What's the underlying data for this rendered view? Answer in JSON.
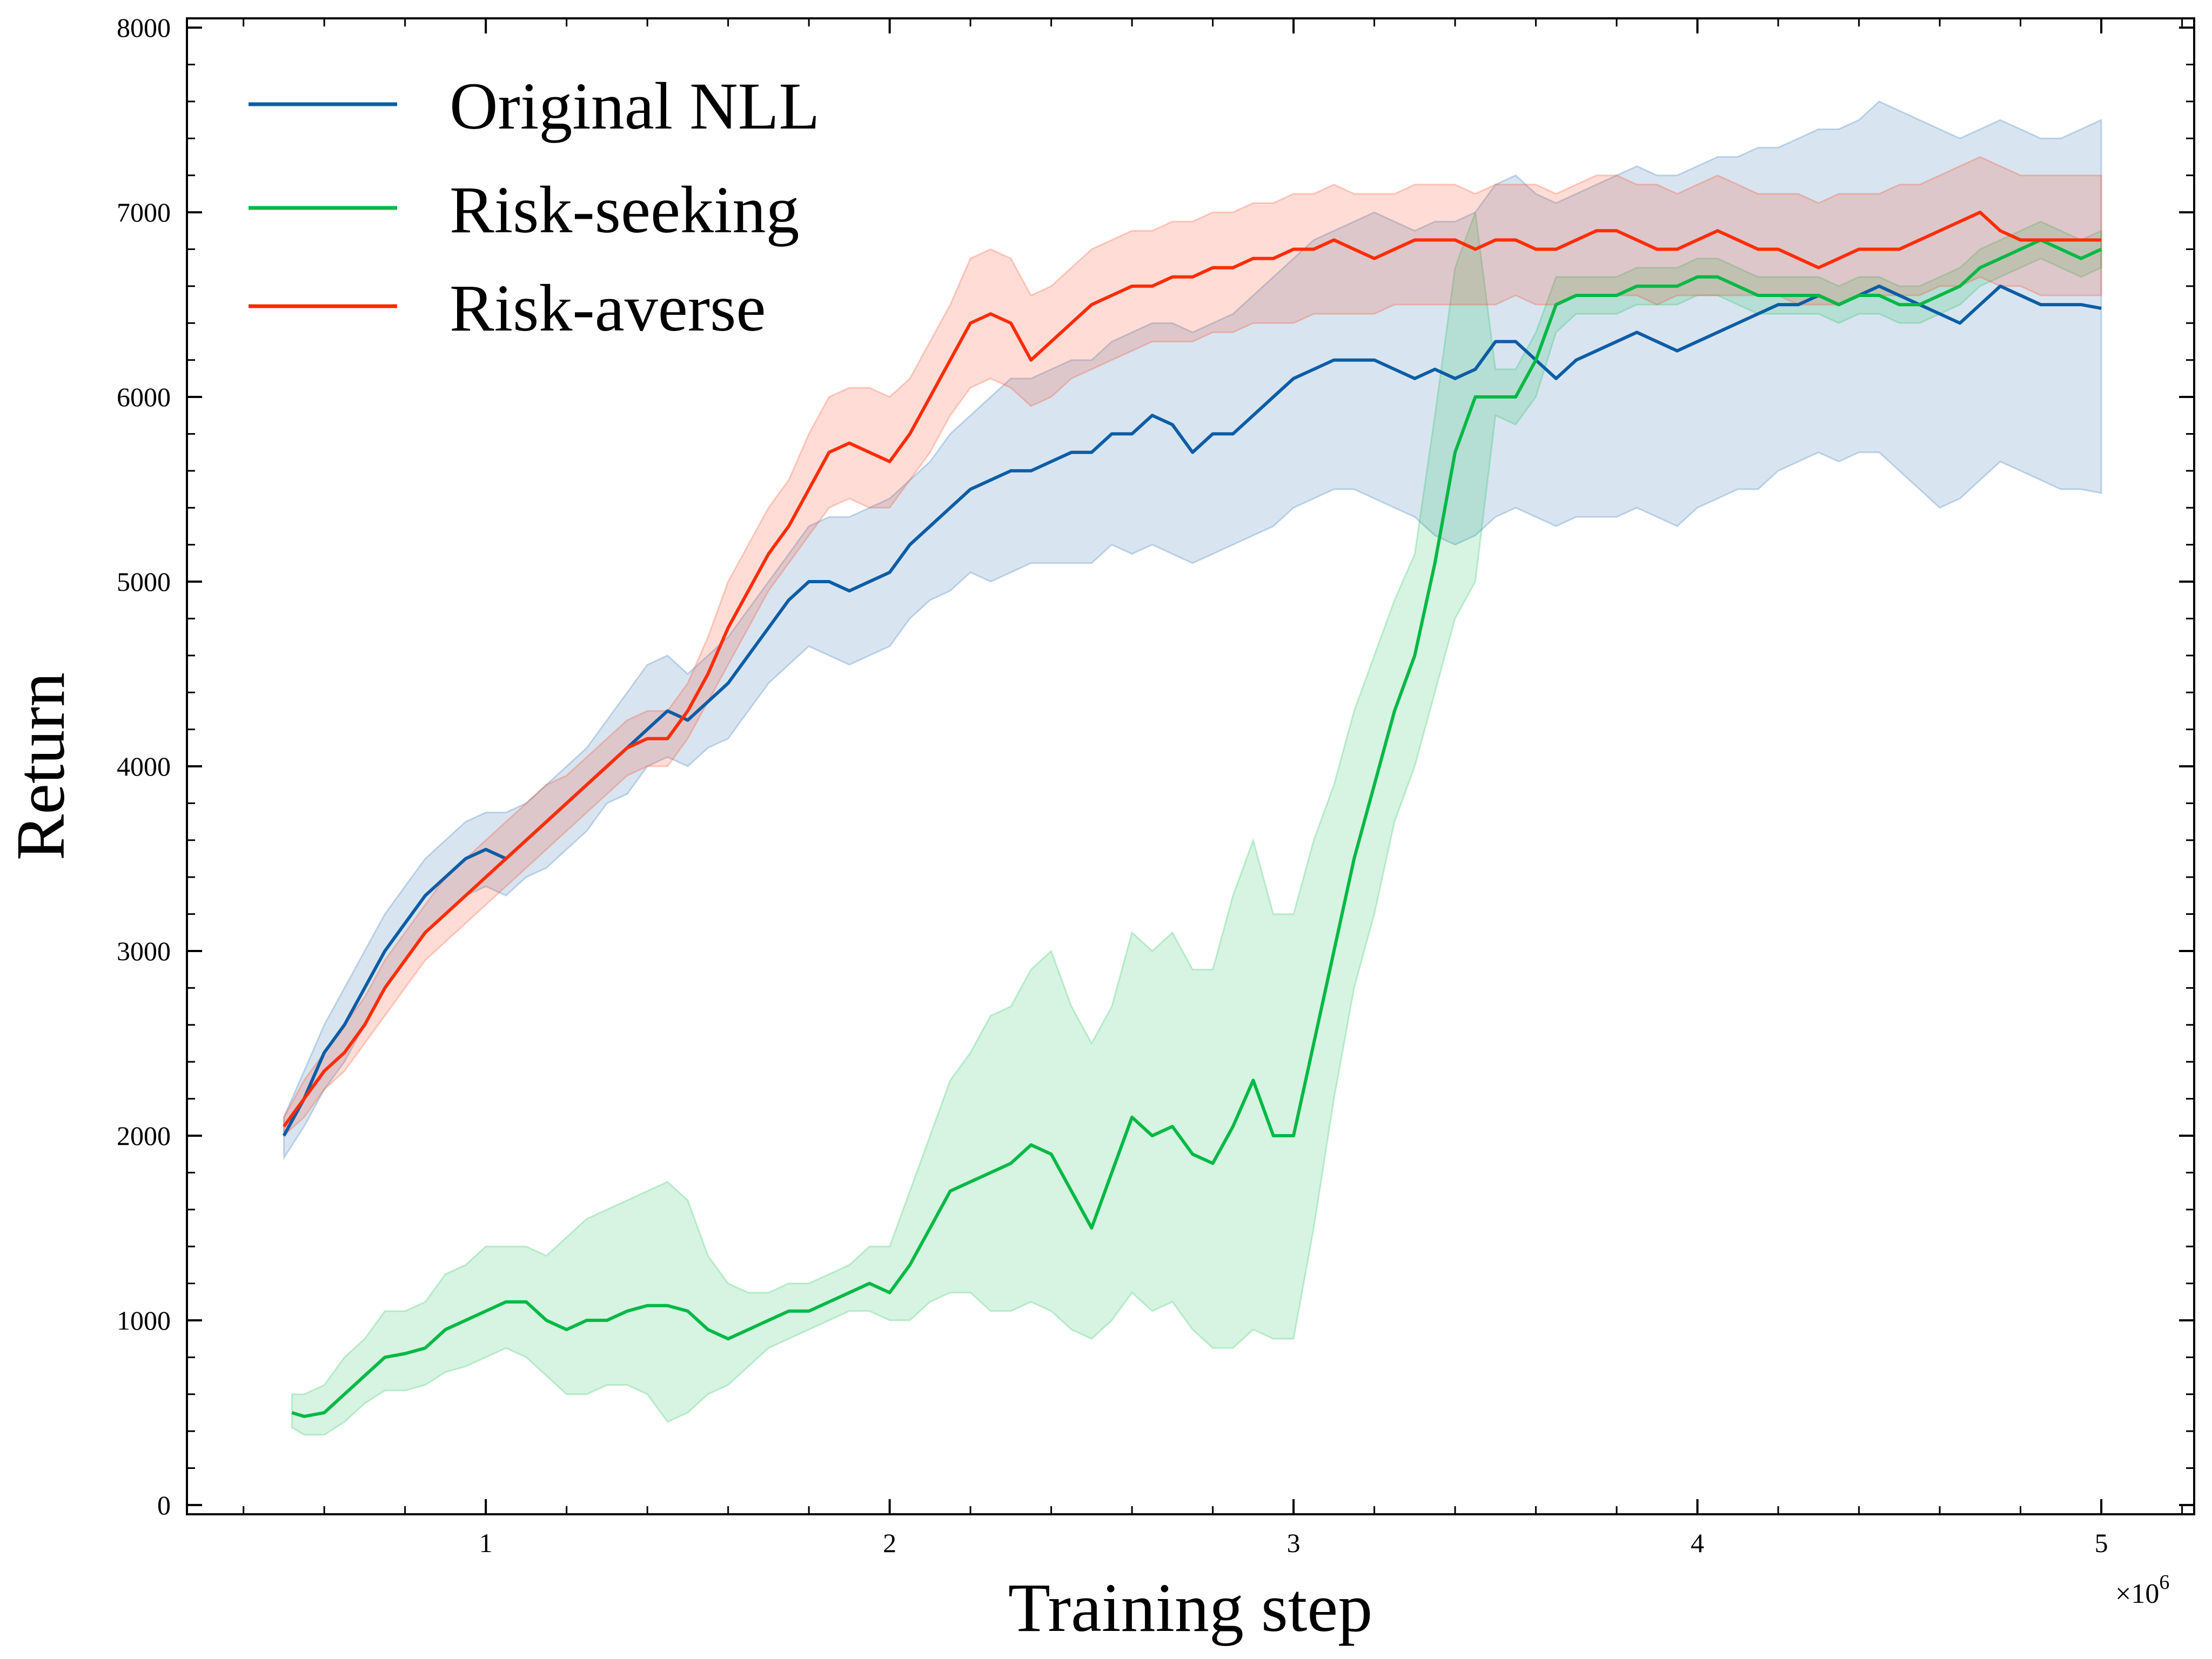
{
  "chart_data": {
    "type": "line",
    "title": "",
    "xlabel": "Training step",
    "ylabel": "Return",
    "x_offset_label": "×10",
    "x_offset_exponent": "6",
    "xlim": [
      0.26,
      5.23
    ],
    "ylim": [
      -50,
      8050
    ],
    "xticks": [
      1,
      2,
      3,
      4,
      5
    ],
    "xtick_labels": [
      "1",
      "2",
      "3",
      "4",
      "5"
    ],
    "yticks": [
      0,
      1000,
      2000,
      3000,
      4000,
      5000,
      6000,
      7000,
      8000
    ],
    "ytick_labels": [
      "0",
      "1000",
      "2000",
      "3000",
      "4000",
      "5000",
      "6000",
      "7000",
      "8000"
    ],
    "grid": false,
    "legend_position": "top-left",
    "series": [
      {
        "name": "Original NLL",
        "color": "#0C5DA5",
        "x": [
          0.5,
          0.55,
          0.6,
          0.65,
          0.7,
          0.75,
          0.8,
          0.85,
          0.9,
          0.95,
          1.0,
          1.05,
          1.1,
          1.15,
          1.2,
          1.25,
          1.3,
          1.35,
          1.4,
          1.45,
          1.5,
          1.55,
          1.6,
          1.65,
          1.7,
          1.75,
          1.8,
          1.85,
          1.9,
          1.95,
          2.0,
          2.05,
          2.1,
          2.15,
          2.2,
          2.25,
          2.3,
          2.35,
          2.4,
          2.45,
          2.5,
          2.55,
          2.6,
          2.65,
          2.7,
          2.75,
          2.8,
          2.85,
          2.9,
          2.95,
          3.0,
          3.05,
          3.1,
          3.15,
          3.2,
          3.25,
          3.3,
          3.35,
          3.4,
          3.45,
          3.5,
          3.55,
          3.6,
          3.65,
          3.7,
          3.75,
          3.8,
          3.85,
          3.9,
          3.95,
          4.0,
          4.05,
          4.1,
          4.15,
          4.2,
          4.25,
          4.3,
          4.35,
          4.4,
          4.45,
          4.5,
          4.55,
          4.6,
          4.65,
          4.7,
          4.75,
          4.8,
          4.85,
          4.9,
          4.95,
          5.0
        ],
        "y": [
          2000,
          2200,
          2450,
          2600,
          2800,
          3000,
          3150,
          3300,
          3400,
          3500,
          3550,
          3500,
          3600,
          3700,
          3800,
          3900,
          4000,
          4100,
          4200,
          4300,
          4250,
          4350,
          4450,
          4600,
          4750,
          4900,
          5000,
          5000,
          4950,
          5000,
          5050,
          5200,
          5300,
          5400,
          5500,
          5550,
          5600,
          5600,
          5650,
          5700,
          5700,
          5800,
          5800,
          5900,
          5850,
          5700,
          5800,
          5800,
          5900,
          6000,
          6100,
          6150,
          6200,
          6200,
          6200,
          6150,
          6100,
          6150,
          6100,
          6150,
          6300,
          6300,
          6200,
          6100,
          6200,
          6250,
          6300,
          6350,
          6300,
          6250,
          6300,
          6350,
          6400,
          6450,
          6500,
          6500,
          6550,
          6500,
          6550,
          6600,
          6550,
          6500,
          6450,
          6400,
          6500,
          6600,
          6550,
          6500,
          6500,
          6500,
          6480
        ],
        "lower": [
          1880,
          2050,
          2250,
          2400,
          2600,
          2800,
          2950,
          3100,
          3200,
          3300,
          3350,
          3300,
          3400,
          3450,
          3550,
          3650,
          3800,
          3850,
          4000,
          4050,
          4000,
          4100,
          4150,
          4300,
          4450,
          4550,
          4650,
          4600,
          4550,
          4600,
          4650,
          4800,
          4900,
          4950,
          5050,
          5000,
          5050,
          5100,
          5100,
          5100,
          5100,
          5200,
          5150,
          5200,
          5150,
          5100,
          5150,
          5200,
          5250,
          5300,
          5400,
          5450,
          5500,
          5500,
          5450,
          5400,
          5350,
          5250,
          5200,
          5250,
          5350,
          5400,
          5350,
          5300,
          5350,
          5350,
          5350,
          5400,
          5350,
          5300,
          5400,
          5450,
          5500,
          5500,
          5600,
          5650,
          5700,
          5650,
          5700,
          5700,
          5600,
          5500,
          5400,
          5450,
          5550,
          5650,
          5600,
          5550,
          5500,
          5500,
          5480
        ],
        "upper": [
          2100,
          2350,
          2600,
          2800,
          3000,
          3200,
          3350,
          3500,
          3600,
          3700,
          3750,
          3750,
          3800,
          3900,
          4000,
          4100,
          4250,
          4400,
          4550,
          4600,
          4500,
          4600,
          4700,
          4850,
          5000,
          5150,
          5300,
          5350,
          5350,
          5400,
          5450,
          5550,
          5650,
          5800,
          5900,
          6000,
          6100,
          6100,
          6150,
          6200,
          6200,
          6300,
          6350,
          6400,
          6400,
          6350,
          6400,
          6450,
          6550,
          6650,
          6750,
          6850,
          6900,
          6950,
          7000,
          6950,
          6900,
          6950,
          6950,
          7000,
          7150,
          7200,
          7100,
          7050,
          7100,
          7150,
          7200,
          7250,
          7200,
          7200,
          7250,
          7300,
          7300,
          7350,
          7350,
          7400,
          7450,
          7450,
          7500,
          7600,
          7550,
          7500,
          7450,
          7400,
          7450,
          7500,
          7450,
          7400,
          7400,
          7450,
          7500
        ]
      },
      {
        "name": "Risk-seeking",
        "color": "#00B945",
        "x": [
          0.52,
          0.55,
          0.6,
          0.65,
          0.7,
          0.75,
          0.8,
          0.85,
          0.9,
          0.95,
          1.0,
          1.05,
          1.1,
          1.15,
          1.2,
          1.25,
          1.3,
          1.35,
          1.4,
          1.45,
          1.5,
          1.55,
          1.6,
          1.65,
          1.7,
          1.75,
          1.8,
          1.85,
          1.9,
          1.95,
          2.0,
          2.05,
          2.1,
          2.15,
          2.2,
          2.25,
          2.3,
          2.35,
          2.4,
          2.45,
          2.5,
          2.55,
          2.6,
          2.65,
          2.7,
          2.75,
          2.8,
          2.85,
          2.9,
          2.95,
          3.0,
          3.05,
          3.1,
          3.15,
          3.2,
          3.25,
          3.3,
          3.35,
          3.4,
          3.45,
          3.5,
          3.55,
          3.6,
          3.65,
          3.7,
          3.75,
          3.8,
          3.85,
          3.9,
          3.95,
          4.0,
          4.05,
          4.1,
          4.15,
          4.2,
          4.25,
          4.3,
          4.35,
          4.4,
          4.45,
          4.5,
          4.55,
          4.6,
          4.65,
          4.7,
          4.75,
          4.8,
          4.85,
          4.9,
          4.95,
          5.0
        ],
        "y": [
          500,
          480,
          500,
          600,
          700,
          800,
          820,
          850,
          950,
          1000,
          1050,
          1100,
          1100,
          1000,
          950,
          1000,
          1000,
          1050,
          1080,
          1080,
          1050,
          950,
          900,
          950,
          1000,
          1050,
          1050,
          1100,
          1150,
          1200,
          1150,
          1300,
          1500,
          1700,
          1750,
          1800,
          1850,
          1950,
          1900,
          1700,
          1500,
          1800,
          2100,
          2000,
          2050,
          1900,
          1850,
          2050,
          2300,
          2000,
          2000,
          2500,
          3000,
          3500,
          3900,
          4300,
          4600,
          5100,
          5700,
          6000,
          6000,
          6000,
          6200,
          6500,
          6550,
          6550,
          6550,
          6600,
          6600,
          6600,
          6650,
          6650,
          6600,
          6550,
          6550,
          6550,
          6550,
          6500,
          6550,
          6550,
          6500,
          6500,
          6550,
          6600,
          6700,
          6750,
          6800,
          6850,
          6800,
          6750,
          6800
        ],
        "lower": [
          420,
          380,
          380,
          450,
          550,
          620,
          620,
          650,
          720,
          750,
          800,
          850,
          800,
          700,
          600,
          600,
          650,
          650,
          600,
          450,
          500,
          600,
          650,
          750,
          850,
          900,
          950,
          1000,
          1050,
          1050,
          1000,
          1000,
          1100,
          1150,
          1150,
          1050,
          1050,
          1100,
          1050,
          950,
          900,
          1000,
          1150,
          1050,
          1100,
          950,
          850,
          850,
          950,
          900,
          900,
          1500,
          2200,
          2800,
          3200,
          3700,
          4000,
          4400,
          4800,
          5000,
          5900,
          5850,
          6000,
          6350,
          6450,
          6450,
          6450,
          6500,
          6500,
          6500,
          6550,
          6550,
          6500,
          6450,
          6450,
          6450,
          6450,
          6400,
          6450,
          6450,
          6400,
          6400,
          6450,
          6500,
          6600,
          6650,
          6700,
          6750,
          6700,
          6650,
          6700
        ],
        "upper": [
          600,
          600,
          650,
          800,
          900,
          1050,
          1050,
          1100,
          1250,
          1300,
          1400,
          1400,
          1400,
          1350,
          1450,
          1550,
          1600,
          1650,
          1700,
          1750,
          1650,
          1350,
          1200,
          1150,
          1150,
          1200,
          1200,
          1250,
          1300,
          1400,
          1400,
          1700,
          2000,
          2300,
          2450,
          2650,
          2700,
          2900,
          3000,
          2700,
          2500,
          2700,
          3100,
          3000,
          3100,
          2900,
          2900,
          3300,
          3600,
          3200,
          3200,
          3600,
          3900,
          4300,
          4600,
          4900,
          5150,
          5900,
          6700,
          7000,
          6150,
          6150,
          6350,
          6650,
          6650,
          6650,
          6650,
          6700,
          6700,
          6700,
          6750,
          6750,
          6700,
          6650,
          6650,
          6650,
          6650,
          6600,
          6650,
          6650,
          6600,
          6600,
          6650,
          6700,
          6800,
          6850,
          6900,
          6950,
          6900,
          6850,
          6900
        ]
      },
      {
        "name": "Risk-averse",
        "color": "#FF2C00",
        "x": [
          0.5,
          0.55,
          0.6,
          0.65,
          0.7,
          0.75,
          0.8,
          0.85,
          0.9,
          0.95,
          1.0,
          1.05,
          1.1,
          1.15,
          1.2,
          1.25,
          1.3,
          1.35,
          1.4,
          1.45,
          1.5,
          1.55,
          1.6,
          1.65,
          1.7,
          1.75,
          1.8,
          1.85,
          1.9,
          1.95,
          2.0,
          2.05,
          2.1,
          2.15,
          2.2,
          2.25,
          2.3,
          2.35,
          2.4,
          2.45,
          2.5,
          2.55,
          2.6,
          2.65,
          2.7,
          2.75,
          2.8,
          2.85,
          2.9,
          2.95,
          3.0,
          3.05,
          3.1,
          3.15,
          3.2,
          3.25,
          3.3,
          3.35,
          3.4,
          3.45,
          3.5,
          3.55,
          3.6,
          3.65,
          3.7,
          3.75,
          3.8,
          3.85,
          3.9,
          3.95,
          4.0,
          4.05,
          4.1,
          4.15,
          4.2,
          4.25,
          4.3,
          4.35,
          4.4,
          4.45,
          4.5,
          4.55,
          4.6,
          4.65,
          4.7,
          4.75,
          4.8,
          4.85,
          4.9,
          4.95,
          5.0
        ],
        "y": [
          2050,
          2200,
          2350,
          2450,
          2600,
          2800,
          2950,
          3100,
          3200,
          3300,
          3400,
          3500,
          3600,
          3700,
          3800,
          3900,
          4000,
          4100,
          4150,
          4150,
          4300,
          4500,
          4750,
          4950,
          5150,
          5300,
          5500,
          5700,
          5750,
          5700,
          5650,
          5800,
          6000,
          6200,
          6400,
          6450,
          6400,
          6200,
          6300,
          6400,
          6500,
          6550,
          6600,
          6600,
          6650,
          6650,
          6700,
          6700,
          6750,
          6750,
          6800,
          6800,
          6850,
          6800,
          6750,
          6800,
          6850,
          6850,
          6850,
          6800,
          6850,
          6850,
          6800,
          6800,
          6850,
          6900,
          6900,
          6850,
          6800,
          6800,
          6850,
          6900,
          6850,
          6800,
          6800,
          6750,
          6700,
          6750,
          6800,
          6800,
          6800,
          6850,
          6900,
          6950,
          7000,
          6900,
          6850,
          6850,
          6850,
          6850,
          6850
        ],
        "lower": [
          2000,
          2100,
          2250,
          2350,
          2500,
          2650,
          2800,
          2950,
          3050,
          3150,
          3250,
          3350,
          3450,
          3550,
          3650,
          3750,
          3850,
          3950,
          4000,
          4000,
          4150,
          4350,
          4550,
          4750,
          4950,
          5100,
          5250,
          5400,
          5450,
          5400,
          5400,
          5550,
          5700,
          5900,
          6050,
          6100,
          6050,
          5950,
          6000,
          6100,
          6150,
          6200,
          6250,
          6300,
          6300,
          6300,
          6350,
          6350,
          6400,
          6400,
          6400,
          6450,
          6450,
          6450,
          6450,
          6500,
          6500,
          6500,
          6500,
          6500,
          6500,
          6550,
          6500,
          6500,
          6550,
          6550,
          6550,
          6550,
          6500,
          6550,
          6550,
          6550,
          6550,
          6550,
          6550,
          6500,
          6500,
          6500,
          6550,
          6550,
          6550,
          6550,
          6600,
          6600,
          6650,
          6600,
          6600,
          6550,
          6550,
          6550,
          6550
        ],
        "upper": [
          2100,
          2300,
          2450,
          2600,
          2750,
          2950,
          3100,
          3250,
          3400,
          3500,
          3600,
          3700,
          3800,
          3900,
          3950,
          4050,
          4150,
          4250,
          4300,
          4300,
          4450,
          4700,
          5000,
          5200,
          5400,
          5550,
          5800,
          6000,
          6050,
          6050,
          6000,
          6100,
          6300,
          6500,
          6750,
          6800,
          6750,
          6550,
          6600,
          6700,
          6800,
          6850,
          6900,
          6900,
          6950,
          6950,
          7000,
          7000,
          7050,
          7050,
          7100,
          7100,
          7150,
          7100,
          7100,
          7100,
          7150,
          7150,
          7150,
          7100,
          7150,
          7150,
          7150,
          7100,
          7150,
          7200,
          7200,
          7150,
          7150,
          7100,
          7150,
          7200,
          7150,
          7100,
          7100,
          7100,
          7050,
          7100,
          7100,
          7100,
          7150,
          7150,
          7200,
          7250,
          7300,
          7250,
          7200,
          7200,
          7200,
          7200,
          7200
        ]
      }
    ]
  }
}
